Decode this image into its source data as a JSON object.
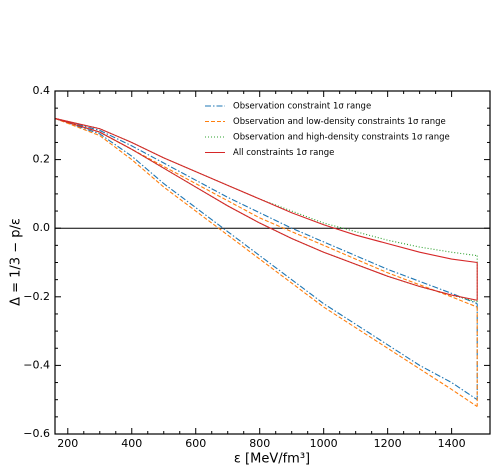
{
  "chart_data": {
    "type": "line",
    "x_label": "ε [MeV/fm³]",
    "y_label": "Δ = 1/3 − p/ε",
    "x": [
      160,
      300,
      400,
      500,
      600,
      700,
      800,
      900,
      1000,
      1100,
      1200,
      1300,
      1400,
      1480
    ],
    "xlim": [
      160,
      1520
    ],
    "ylim": [
      -0.6,
      0.4
    ],
    "xticks": [
      200,
      400,
      600,
      800,
      1000,
      1200,
      1400
    ],
    "yticks": [
      {
        "value": -0.6,
        "label": "−0.6"
      },
      {
        "value": -0.4,
        "label": "−0.4"
      },
      {
        "value": -0.2,
        "label": "−0.2"
      },
      {
        "value": 0,
        "label": "0.0"
      },
      0.2,
      0.4
    ],
    "reference_line": 0,
    "legend": "upper right",
    "series": [
      {
        "name": "Observation constraint 1σ range",
        "color": "#1f77b4",
        "dash": "6 2 1.5 2",
        "upper": [
          0.32,
          0.285,
          0.24,
          0.19,
          0.14,
          0.09,
          0.045,
          0.0,
          -0.04,
          -0.08,
          -0.12,
          -0.155,
          -0.19,
          -0.22
        ],
        "lower": [
          0.32,
          0.275,
          0.21,
          0.13,
          0.06,
          -0.01,
          -0.08,
          -0.15,
          -0.22,
          -0.28,
          -0.34,
          -0.4,
          -0.45,
          -0.5
        ]
      },
      {
        "name": "Observation and low-density constraints 1σ range",
        "color": "#ff7f0e",
        "dash": "4 2",
        "upper": [
          0.32,
          0.28,
          0.23,
          0.18,
          0.13,
          0.08,
          0.03,
          -0.01,
          -0.05,
          -0.09,
          -0.13,
          -0.165,
          -0.2,
          -0.23
        ],
        "lower": [
          0.32,
          0.27,
          0.2,
          0.12,
          0.05,
          -0.02,
          -0.09,
          -0.16,
          -0.23,
          -0.29,
          -0.35,
          -0.41,
          -0.47,
          -0.52
        ]
      },
      {
        "name": "Observation and high-density constraints 1σ range",
        "color": "#2ca02c",
        "dash": "1 2",
        "upper": [
          0.32,
          0.29,
          0.25,
          0.205,
          0.165,
          0.125,
          0.085,
          0.05,
          0.015,
          -0.01,
          -0.035,
          -0.055,
          -0.07,
          -0.08
        ],
        "lower": [
          0.32,
          0.28,
          0.23,
          0.175,
          0.12,
          0.065,
          0.015,
          -0.03,
          -0.07,
          -0.105,
          -0.14,
          -0.17,
          -0.195,
          -0.215
        ]
      },
      {
        "name": "All constraints 1σ range",
        "color": "#d62728",
        "dash": "",
        "upper": [
          0.32,
          0.29,
          0.25,
          0.205,
          0.165,
          0.125,
          0.085,
          0.045,
          0.01,
          -0.02,
          -0.045,
          -0.07,
          -0.09,
          -0.1
        ],
        "lower": [
          0.32,
          0.28,
          0.23,
          0.175,
          0.12,
          0.065,
          0.015,
          -0.03,
          -0.07,
          -0.105,
          -0.14,
          -0.17,
          -0.195,
          -0.21
        ]
      }
    ]
  }
}
